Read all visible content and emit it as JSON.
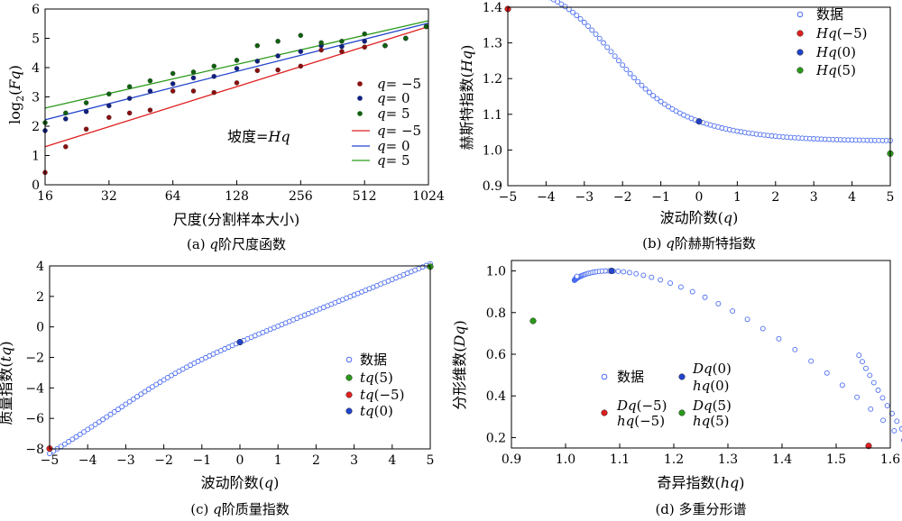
{
  "panels": {
    "a": {
      "caption": "(a) q阶尺度函数",
      "annotation": "坡度=Hq",
      "legend_scatter": [
        "q= −5",
        "q= 0",
        "q= 5"
      ],
      "legend_lines": [
        "q= −5",
        "q= 0",
        "q= 5"
      ]
    },
    "b": {
      "caption": "(b) q阶赫斯特指数",
      "legend": [
        "数据",
        "Hq(−5)",
        "Hq(0)",
        "Hq(5)"
      ]
    },
    "c": {
      "caption": "(c) q阶质量指数",
      "legend": [
        "数据",
        "tq(5)",
        "tq(−5)",
        "tq(0)"
      ]
    },
    "d": {
      "caption": "(d) 多重分形谱",
      "legend": [
        "数据",
        "Dq(0)",
        "hq(0)",
        "Dq(−5)",
        "hq(−5)",
        "Dq(5)",
        "hq(5)"
      ]
    }
  },
  "colors": {
    "red": "#e02020",
    "blue": "#2244cc",
    "green": "#2a9a1a",
    "data_marker": "#4a6cf0",
    "dark_red": "#8a1010",
    "dark_blue": "#102080",
    "dark_green": "#106010"
  },
  "chart_data": [
    {
      "id": "a",
      "type": "scatter",
      "xscale": "log2",
      "xlabel": "尺度(分割样本大小)",
      "ylabel": "log2(Fq)",
      "xticks": [
        16,
        32,
        64,
        128,
        256,
        512,
        1024
      ],
      "xlim": [
        16,
        1024
      ],
      "ylim": [
        0,
        6
      ],
      "yticks": [
        0,
        1,
        2,
        3,
        4,
        5,
        6
      ],
      "x": [
        16,
        20,
        25,
        32,
        40,
        50,
        64,
        80,
        100,
        128,
        160,
        200,
        256,
        320,
        400,
        512,
        640,
        800,
        1000
      ],
      "series": [
        {
          "name": "q= −5",
          "values": [
            0.42,
            1.3,
            1.9,
            2.3,
            2.45,
            2.55,
            3.2,
            3.2,
            3.15,
            3.48,
            3.9,
            3.92,
            4.05,
            4.6,
            4.55,
            4.7,
            4.75,
            5.0,
            5.4
          ]
        },
        {
          "name": "q= 0",
          "values": [
            1.85,
            2.25,
            2.5,
            2.7,
            2.95,
            3.2,
            3.45,
            3.65,
            3.7,
            3.97,
            4.22,
            4.4,
            4.55,
            4.75,
            4.72,
            4.9,
            4.75,
            5.0,
            5.4
          ]
        },
        {
          "name": "q= 5",
          "values": [
            2.12,
            2.45,
            2.8,
            3.1,
            3.35,
            3.55,
            3.8,
            3.85,
            4.05,
            4.25,
            4.75,
            4.9,
            5.1,
            4.85,
            4.9,
            5.15,
            4.75,
            5.0,
            5.4
          ]
        }
      ],
      "fit_lines": [
        {
          "name": "q= −5",
          "x": [
            16,
            1024
          ],
          "y": [
            1.3,
            5.4
          ]
        },
        {
          "name": "q= 0",
          "x": [
            16,
            1024
          ],
          "y": [
            2.22,
            5.52
          ]
        },
        {
          "name": "q= 5",
          "x": [
            16,
            1024
          ],
          "y": [
            2.62,
            5.6
          ]
        }
      ]
    },
    {
      "id": "b",
      "type": "scatter",
      "xlabel": "波动阶数(q)",
      "ylabel": "赫斯特指数(Hq)",
      "xlim": [
        -5,
        5
      ],
      "ylim": [
        0.9,
        1.4
      ],
      "xticks": [
        -5,
        -4,
        -3,
        -2,
        -1,
        0,
        1,
        2,
        3,
        4,
        5
      ],
      "yticks": [
        0.9,
        1.0,
        1.1,
        1.2,
        1.3,
        1.4
      ],
      "model": "Hq(q) = 1.06 + 0.19*(1 - tanh((q+2.3)/1.6)) - 0.035*tanh(q/2.5), sampled at q = -5 : 0.1 : 5",
      "highlights": [
        {
          "name": "Hq(−5)",
          "x": -5,
          "y": 1.395
        },
        {
          "name": "Hq(0)",
          "x": 0,
          "y": 1.08
        },
        {
          "name": "Hq(5)",
          "x": 5,
          "y": 0.99
        }
      ]
    },
    {
      "id": "c",
      "type": "scatter",
      "xlabel": "波动阶数(q)",
      "ylabel": "质量指数(tq)",
      "xlim": [
        -5,
        5
      ],
      "ylim": [
        -8,
        4
      ],
      "xticks": [
        -5,
        -4,
        -3,
        -2,
        -1,
        0,
        1,
        2,
        3,
        4,
        5
      ],
      "yticks": [
        -8,
        -6,
        -4,
        -2,
        0,
        2,
        4
      ],
      "model": "tq(q) = q*Hq(q) - 1, sampled at q = -5 : 0.1 : 5",
      "highlights": [
        {
          "name": "tq(5)",
          "x": 5,
          "y": 3.95
        },
        {
          "name": "tq(−5)",
          "x": -5,
          "y": -7.98
        },
        {
          "name": "tq(0)",
          "x": 0,
          "y": -1.0
        }
      ]
    },
    {
      "id": "d",
      "type": "scatter",
      "xlabel": "奇异指数(hq)",
      "ylabel": "分形维数(Dq)",
      "xlim": [
        0.9,
        1.6
      ],
      "ylim": [
        0.15,
        1.05
      ],
      "xticks": [
        0.9,
        1.0,
        1.1,
        1.2,
        1.3,
        1.4,
        1.5,
        1.6
      ],
      "yticks": [
        0.2,
        0.4,
        0.6,
        0.8,
        1.0
      ],
      "model": "hq = d(tq)/dq, Dq = q*hq - tq",
      "highlights": [
        {
          "name": "Dq(0) hq(0)",
          "x": 1.085,
          "y": 1.0
        },
        {
          "name": "Dq(−5) hq(−5)",
          "x": 1.56,
          "y": 0.16
        },
        {
          "name": "Dq(5) hq(5)",
          "x": 0.94,
          "y": 0.76
        }
      ]
    }
  ]
}
